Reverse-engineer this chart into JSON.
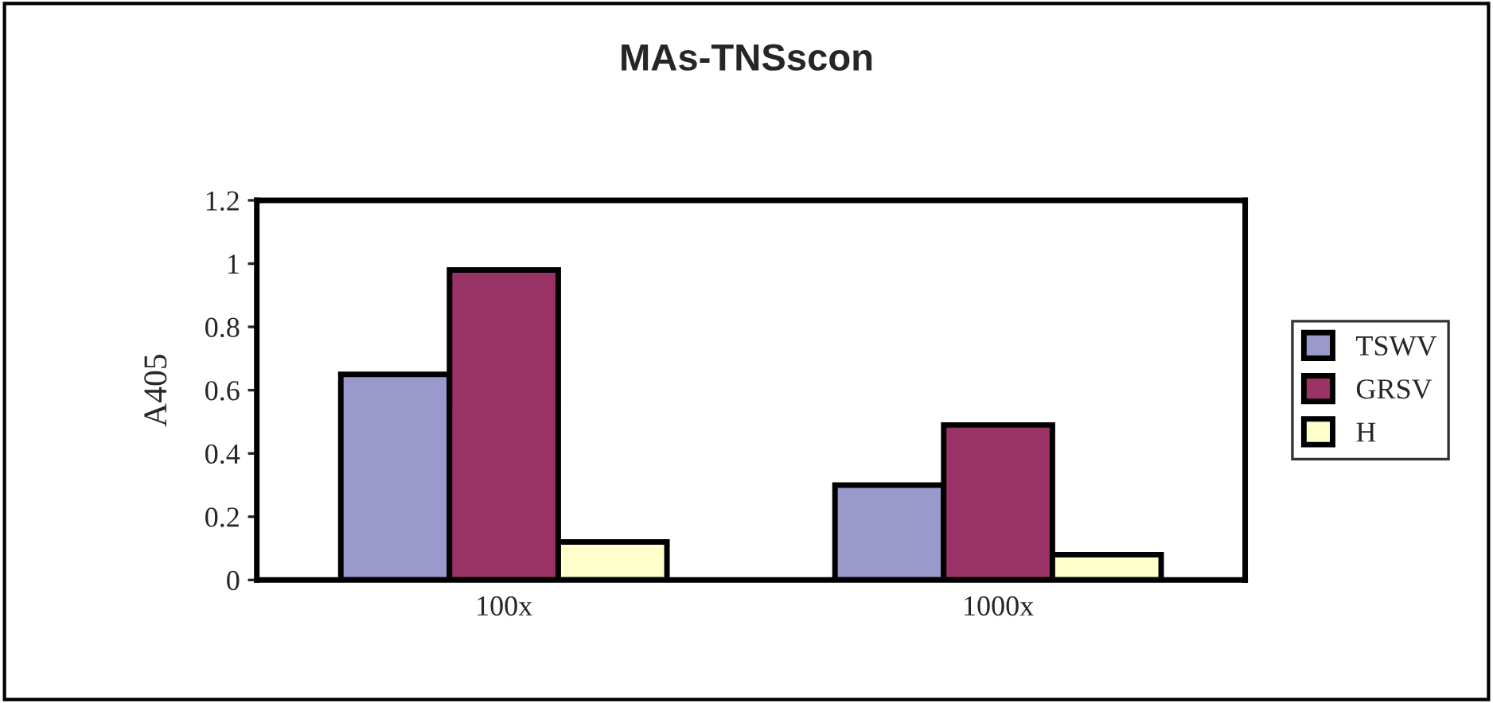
{
  "chart_data": {
    "type": "bar",
    "title": "MAs-TNSscon",
    "ylabel": "A405",
    "categories": [
      "100x",
      "1000x"
    ],
    "series": [
      {
        "name": "TSWV",
        "color": "#9999cc",
        "values": [
          0.65,
          0.3
        ]
      },
      {
        "name": "GRSV",
        "color": "#993366",
        "values": [
          0.98,
          0.49
        ]
      },
      {
        "name": "H",
        "color": "#ffffcc",
        "values": [
          0.12,
          0.08
        ]
      }
    ],
    "ylim": [
      0,
      1.2
    ],
    "yticks": [
      0,
      0.2,
      0.4,
      0.6,
      0.8,
      1,
      1.2
    ],
    "grid": false,
    "legend": "right"
  }
}
